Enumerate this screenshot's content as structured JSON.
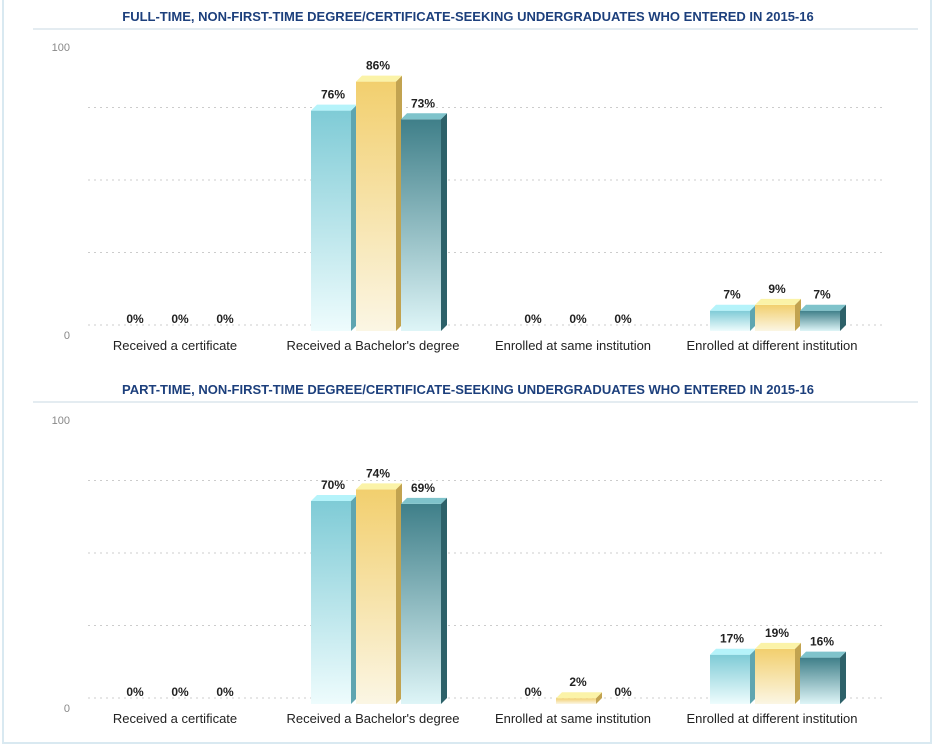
{
  "chart_data": [
    {
      "type": "bar",
      "title": "FULL-TIME, NON-FIRST-TIME DEGREE/CERTIFICATE-SEEKING UNDERGRADUATES WHO ENTERED IN 2015-16",
      "categories": [
        "Received a certificate",
        "Received a Bachelor's degree",
        "Enrolled at same institution",
        "Enrolled at different institution"
      ],
      "series": [
        {
          "values": [
            0,
            76,
            0,
            7
          ],
          "color": "#7fcbd6"
        },
        {
          "values": [
            0,
            86,
            0,
            9
          ],
          "color": "#f2cf6e"
        },
        {
          "values": [
            0,
            73,
            0,
            7
          ],
          "color": "#3f7f89"
        }
      ],
      "ylim": [
        0,
        100
      ],
      "yticks": [
        "0",
        "100"
      ],
      "value_suffix": "%",
      "grid": true
    },
    {
      "type": "bar",
      "title": "PART-TIME, NON-FIRST-TIME DEGREE/CERTIFICATE-SEEKING UNDERGRADUATES WHO ENTERED IN 2015-16",
      "categories": [
        "Received a certificate",
        "Received a Bachelor's degree",
        "Enrolled at same institution",
        "Enrolled at different institution"
      ],
      "series": [
        {
          "values": [
            0,
            70,
            0,
            17
          ],
          "color": "#7fcbd6"
        },
        {
          "values": [
            0,
            74,
            2,
            19
          ],
          "color": "#f2cf6e"
        },
        {
          "values": [
            0,
            69,
            0,
            16
          ],
          "color": "#3f7f89"
        }
      ],
      "ylim": [
        0,
        100
      ],
      "yticks": [
        "0",
        "100"
      ],
      "value_suffix": "%",
      "grid": true
    }
  ]
}
